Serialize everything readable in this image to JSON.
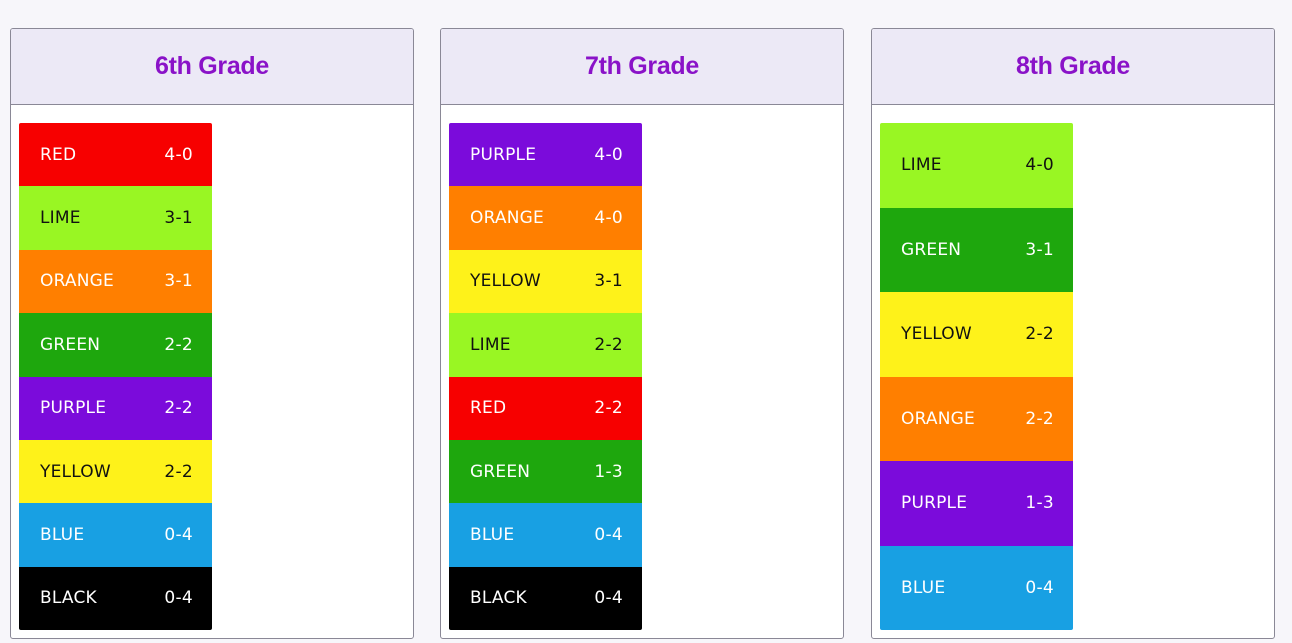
{
  "columns": [
    {
      "title": "6th Grade",
      "row_height": 63.4,
      "rows": [
        {
          "team": "RED",
          "record": "4-0",
          "bg": "#f70000",
          "fg": "#ffffff"
        },
        {
          "team": "LIME",
          "record": "3-1",
          "bg": "#99f623",
          "fg": "#111111"
        },
        {
          "team": "ORANGE",
          "record": "3-1",
          "bg": "#ff7f00",
          "fg": "#ffffff"
        },
        {
          "team": "GREEN",
          "record": "2-2",
          "bg": "#1ea70d",
          "fg": "#ffffff"
        },
        {
          "team": "PURPLE",
          "record": "2-2",
          "bg": "#7b0bdb",
          "fg": "#ffffff"
        },
        {
          "team": "YELLOW",
          "record": "2-2",
          "bg": "#fef21a",
          "fg": "#111111"
        },
        {
          "team": "BLUE",
          "record": "0-4",
          "bg": "#18a0e3",
          "fg": "#ffffff"
        },
        {
          "team": "BLACK",
          "record": "0-4",
          "bg": "#000000",
          "fg": "#ffffff"
        }
      ]
    },
    {
      "title": "7th Grade",
      "row_height": 63.4,
      "rows": [
        {
          "team": "PURPLE",
          "record": "4-0",
          "bg": "#7b0bdb",
          "fg": "#ffffff"
        },
        {
          "team": "ORANGE",
          "record": "4-0",
          "bg": "#ff7f00",
          "fg": "#ffffff"
        },
        {
          "team": "YELLOW",
          "record": "3-1",
          "bg": "#fef21a",
          "fg": "#111111"
        },
        {
          "team": "LIME",
          "record": "2-2",
          "bg": "#99f623",
          "fg": "#111111"
        },
        {
          "team": "RED",
          "record": "2-2",
          "bg": "#f70000",
          "fg": "#ffffff"
        },
        {
          "team": "GREEN",
          "record": "1-3",
          "bg": "#1ea70d",
          "fg": "#ffffff"
        },
        {
          "team": "BLUE",
          "record": "0-4",
          "bg": "#18a0e3",
          "fg": "#ffffff"
        },
        {
          "team": "BLACK",
          "record": "0-4",
          "bg": "#000000",
          "fg": "#ffffff"
        }
      ]
    },
    {
      "title": "8th Grade",
      "row_height": 84.5,
      "rows": [
        {
          "team": "LIME",
          "record": "4-0",
          "bg": "#99f623",
          "fg": "#111111"
        },
        {
          "team": "GREEN",
          "record": "3-1",
          "bg": "#1ea70d",
          "fg": "#ffffff"
        },
        {
          "team": "YELLOW",
          "record": "2-2",
          "bg": "#fef21a",
          "fg": "#111111"
        },
        {
          "team": "ORANGE",
          "record": "2-2",
          "bg": "#ff7f00",
          "fg": "#ffffff"
        },
        {
          "team": "PURPLE",
          "record": "1-3",
          "bg": "#7b0bdb",
          "fg": "#ffffff"
        },
        {
          "team": "BLUE",
          "record": "0-4",
          "bg": "#18a0e3",
          "fg": "#ffffff"
        }
      ]
    }
  ],
  "colors": {
    "title": "#8a12c8",
    "header_bg": "#ece9f6",
    "border": "#8a8896",
    "page_bg": "#f7f6fa"
  }
}
